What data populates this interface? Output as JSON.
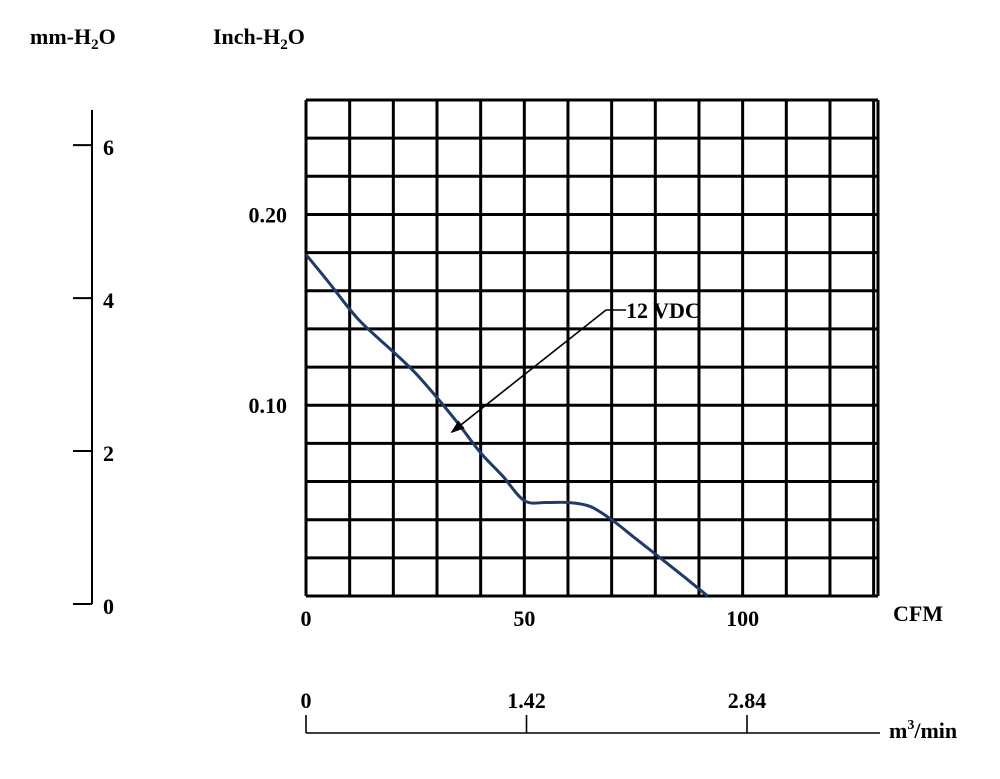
{
  "chart_data": {
    "type": "line",
    "title": "",
    "left_axis": {
      "label_main": "mm-H",
      "label_sub": "2",
      "label_tail": "O",
      "ticks": [
        {
          "value": 0,
          "label": "0"
        },
        {
          "value": 2,
          "label": "2"
        },
        {
          "value": 4,
          "label": "4"
        },
        {
          "value": 6,
          "label": "6"
        }
      ],
      "range": [
        0,
        6.46
      ]
    },
    "y_axis": {
      "label_main": "Inch-H",
      "label_sub": "2",
      "label_tail": "O",
      "ticks": [
        {
          "value": 0.1,
          "label": "0.10"
        },
        {
          "value": 0.2,
          "label": "0.20"
        }
      ],
      "range": [
        0,
        0.26
      ],
      "grid_step": 0.02
    },
    "x_axis": {
      "label": "CFM",
      "ticks": [
        {
          "value": 0,
          "label": "0"
        },
        {
          "value": 50,
          "label": "50"
        },
        {
          "value": 100,
          "label": "100"
        }
      ],
      "range": [
        0,
        131
      ],
      "grid_step": 10
    },
    "bottom_axis": {
      "label_main": "m",
      "label_sup": "3",
      "label_tail": "/min",
      "ticks": [
        {
          "value": 0,
          "label": "0"
        },
        {
          "value": 1.42,
          "label": "1.42"
        },
        {
          "value": 2.84,
          "label": "2.84"
        }
      ]
    },
    "grid": true,
    "series": [
      {
        "name": "12 VDC",
        "color": "#1f3a6b",
        "x": [
          0,
          5,
          12,
          20,
          25,
          30,
          35,
          40,
          45,
          50,
          55,
          60,
          65,
          70,
          75,
          80,
          85,
          92
        ],
        "y": [
          0.179,
          0.165,
          0.145,
          0.128,
          0.117,
          0.104,
          0.09,
          0.075,
          0.063,
          0.05,
          0.049,
          0.049,
          0.047,
          0.04,
          0.031,
          0.022,
          0.013,
          0.0
        ]
      }
    ],
    "annotations": [
      {
        "text": "12 VDC",
        "points_to": {
          "x": 33,
          "y": 0.085
        }
      }
    ]
  }
}
